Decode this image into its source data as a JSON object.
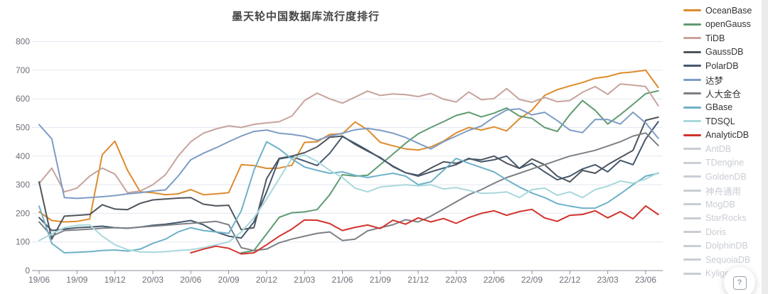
{
  "ui": {
    "help_button": {
      "glyph": "?"
    }
  },
  "legend": {
    "position": "right",
    "disabled_color": "#c9cdd4",
    "items": [
      {
        "label": "OceanBase",
        "color": "#dd8b2d",
        "disabled": false
      },
      {
        "label": "openGauss",
        "color": "#609b72",
        "disabled": false
      },
      {
        "label": "TiDB",
        "color": "#c7a39c",
        "disabled": false
      },
      {
        "label": "GaussDB",
        "color": "#4f555c",
        "disabled": false
      },
      {
        "label": "PolarDB",
        "color": "#45586d",
        "disabled": false
      },
      {
        "label": "达梦",
        "color": "#7e9cc5",
        "disabled": false
      },
      {
        "label": "人大金仓",
        "color": "#7c8085",
        "disabled": false
      },
      {
        "label": "GBase",
        "color": "#6eb1c8",
        "disabled": false
      },
      {
        "label": "TDSQL",
        "color": "#a8d8dc",
        "disabled": false
      },
      {
        "label": "AnalyticDB",
        "color": "#d2332c",
        "disabled": false
      },
      {
        "label": "AntDB",
        "color": "#c9cdd4",
        "disabled": true
      },
      {
        "label": "TDengine",
        "color": "#c9cdd4",
        "disabled": true
      },
      {
        "label": "GoldenDB",
        "color": "#c9cdd4",
        "disabled": true
      },
      {
        "label": "神舟通用",
        "color": "#c9cdd4",
        "disabled": true
      },
      {
        "label": "MogDB",
        "color": "#c9cdd4",
        "disabled": true
      },
      {
        "label": "StarRocks",
        "color": "#c9cdd4",
        "disabled": true
      },
      {
        "label": "Doris",
        "color": "#c9cdd4",
        "disabled": true
      },
      {
        "label": "DolphinDB",
        "color": "#c9cdd4",
        "disabled": true
      },
      {
        "label": "SequoiaDB",
        "color": "#c9cdd4",
        "disabled": true
      },
      {
        "label": "Kyligence",
        "color": "#c9cdd4",
        "disabled": true
      }
    ]
  },
  "chart_data": {
    "type": "line",
    "title": "墨天轮中国数据库流行度排行",
    "xlabel": "",
    "ylabel": "",
    "ylim": [
      0,
      800
    ],
    "y_ticks": [
      0,
      100,
      200,
      300,
      400,
      500,
      600,
      700,
      800
    ],
    "grid": true,
    "legend_position": "right",
    "axis_label_color": "#6e7079",
    "grid_color": "#e3e8f1",
    "axis_line_color": "#8b9097",
    "x": [
      "19/06",
      "19/07",
      "19/08",
      "19/09",
      "19/10",
      "19/11",
      "19/12",
      "20/01",
      "20/02",
      "20/03",
      "20/04",
      "20/05",
      "20/06",
      "20/07",
      "20/08",
      "20/09",
      "20/10",
      "20/11",
      "20/12",
      "21/01",
      "21/02",
      "21/03",
      "21/04",
      "21/05",
      "21/06",
      "21/07",
      "21/08",
      "21/09",
      "21/10",
      "21/11",
      "21/12",
      "22/01",
      "22/02",
      "22/03",
      "22/04",
      "22/05",
      "22/06",
      "22/07",
      "22/08",
      "22/09",
      "22/10",
      "22/11",
      "22/12",
      "23/01",
      "23/02",
      "23/03",
      "23/04",
      "23/05",
      "23/06",
      "23/07"
    ],
    "x_tick_labels": [
      "19/06",
      "19/09",
      "19/12",
      "20/03",
      "20/06",
      "20/09",
      "20/12",
      "21/03",
      "21/06",
      "21/09",
      "21/12",
      "22/03",
      "22/06",
      "22/09",
      "22/12",
      "23/03",
      "23/06"
    ],
    "series": [
      {
        "name": "OceanBase",
        "color": "#dd8b2d",
        "values": [
          205,
          175,
          170,
          172,
          180,
          405,
          452,
          350,
          275,
          272,
          265,
          268,
          283,
          265,
          268,
          272,
          370,
          367,
          357,
          358,
          368,
          448,
          450,
          476,
          478,
          519,
          492,
          448,
          436,
          425,
          421,
          432,
          452,
          481,
          500,
          491,
          502,
          488,
          530,
          560,
          612,
          632,
          645,
          657,
          672,
          678,
          690,
          694,
          700,
          640
        ]
      },
      {
        "name": "openGauss",
        "color": "#609b72",
        "values": [
          null,
          null,
          null,
          null,
          null,
          null,
          null,
          null,
          null,
          null,
          null,
          null,
          null,
          null,
          null,
          null,
          62,
          70,
          128,
          186,
          202,
          205,
          213,
          265,
          335,
          330,
          333,
          370,
          407,
          445,
          478,
          500,
          520,
          542,
          553,
          537,
          550,
          568,
          540,
          532,
          500,
          486,
          545,
          594,
          560,
          512,
          545,
          581,
          618,
          628
        ]
      },
      {
        "name": "TiDB",
        "color": "#c7a39c",
        "values": [
          304,
          358,
          275,
          288,
          330,
          358,
          337,
          272,
          278,
          300,
          335,
          400,
          450,
          480,
          495,
          506,
          500,
          511,
          516,
          520,
          540,
          594,
          620,
          600,
          585,
          606,
          627,
          612,
          617,
          615,
          608,
          619,
          599,
          589,
          624,
          597,
          601,
          636,
          598,
          588,
          605,
          590,
          594,
          623,
          643,
          616,
          652,
          648,
          643,
          576
        ]
      },
      {
        "name": "GaussDB",
        "color": "#4f555c",
        "values": [
          310,
          110,
          190,
          193,
          196,
          230,
          215,
          213,
          235,
          247,
          250,
          253,
          255,
          232,
          226,
          228,
          143,
          150,
          321,
          392,
          400,
          412,
          432,
          466,
          470,
          441,
          417,
          395,
          363,
          342,
          333,
          358,
          380,
          375,
          390,
          387,
          400,
          375,
          357,
          390,
          370,
          330,
          310,
          350,
          340,
          370,
          395,
          420,
          525,
          536
        ]
      },
      {
        "name": "PolarDB",
        "color": "#45586d",
        "values": [
          185,
          140,
          145,
          150,
          152,
          155,
          150,
          148,
          152,
          158,
          162,
          168,
          175,
          160,
          135,
          120,
          114,
          170,
          275,
          390,
          398,
          383,
          367,
          410,
          468,
          445,
          420,
          393,
          365,
          342,
          330,
          345,
          358,
          370,
          392,
          380,
          387,
          400,
          357,
          375,
          345,
          317,
          330,
          355,
          370,
          345,
          385,
          370,
          460,
          520
        ]
      },
      {
        "name": "达梦",
        "color": "#7e9cc5",
        "values": [
          510,
          460,
          255,
          252,
          255,
          258,
          262,
          268,
          272,
          278,
          282,
          330,
          387,
          410,
          429,
          450,
          470,
          486,
          491,
          480,
          476,
          469,
          455,
          470,
          480,
          492,
          497,
          490,
          480,
          465,
          445,
          425,
          450,
          470,
          490,
          505,
          536,
          561,
          565,
          544,
          553,
          524,
          491,
          482,
          528,
          528,
          512,
          553,
          516,
          462
        ]
      },
      {
        "name": "人大金仓",
        "color": "#7c8085",
        "values": [
          170,
          120,
          140,
          142,
          145,
          148,
          150,
          148,
          152,
          155,
          158,
          162,
          165,
          168,
          172,
          160,
          80,
          70,
          75,
          97,
          110,
          120,
          130,
          135,
          105,
          110,
          139,
          150,
          160,
          178,
          170,
          190,
          215,
          240,
          265,
          283,
          305,
          325,
          340,
          355,
          370,
          385,
          400,
          410,
          420,
          435,
          450,
          470,
          481,
          437
        ]
      },
      {
        "name": "GBase",
        "color": "#6eb1c8",
        "values": [
          225,
          95,
          62,
          64,
          66,
          70,
          72,
          68,
          75,
          95,
          110,
          135,
          150,
          140,
          135,
          130,
          209,
          350,
          450,
          425,
          390,
          362,
          350,
          340,
          345,
          333,
          325,
          333,
          340,
          330,
          300,
          310,
          350,
          392,
          375,
          360,
          345,
          317,
          292,
          271,
          255,
          234,
          225,
          218,
          218,
          238,
          268,
          300,
          330,
          340
        ]
      },
      {
        "name": "TDSQL",
        "color": "#a8d8dc",
        "values": [
          105,
          128,
          150,
          158,
          160,
          120,
          90,
          73,
          65,
          64,
          66,
          70,
          73,
          80,
          90,
          100,
          135,
          184,
          250,
          321,
          392,
          404,
          382,
          350,
          325,
          288,
          275,
          292,
          296,
          300,
          296,
          300,
          285,
          290,
          280,
          270,
          271,
          275,
          255,
          283,
          288,
          263,
          275,
          255,
          283,
          295,
          313,
          305,
          320,
          342
        ]
      },
      {
        "name": "AnalyticDB",
        "color": "#d2332c",
        "values": [
          null,
          null,
          null,
          null,
          null,
          null,
          null,
          null,
          null,
          null,
          null,
          null,
          62,
          75,
          85,
          78,
          58,
          62,
          90,
          120,
          145,
          177,
          176,
          164,
          140,
          151,
          159,
          147,
          176,
          162,
          184,
          170,
          182,
          165,
          185,
          200,
          209,
          193,
          206,
          214,
          184,
          172,
          193,
          196,
          209,
          184,
          206,
          181,
          226,
          196
        ]
      }
    ]
  }
}
